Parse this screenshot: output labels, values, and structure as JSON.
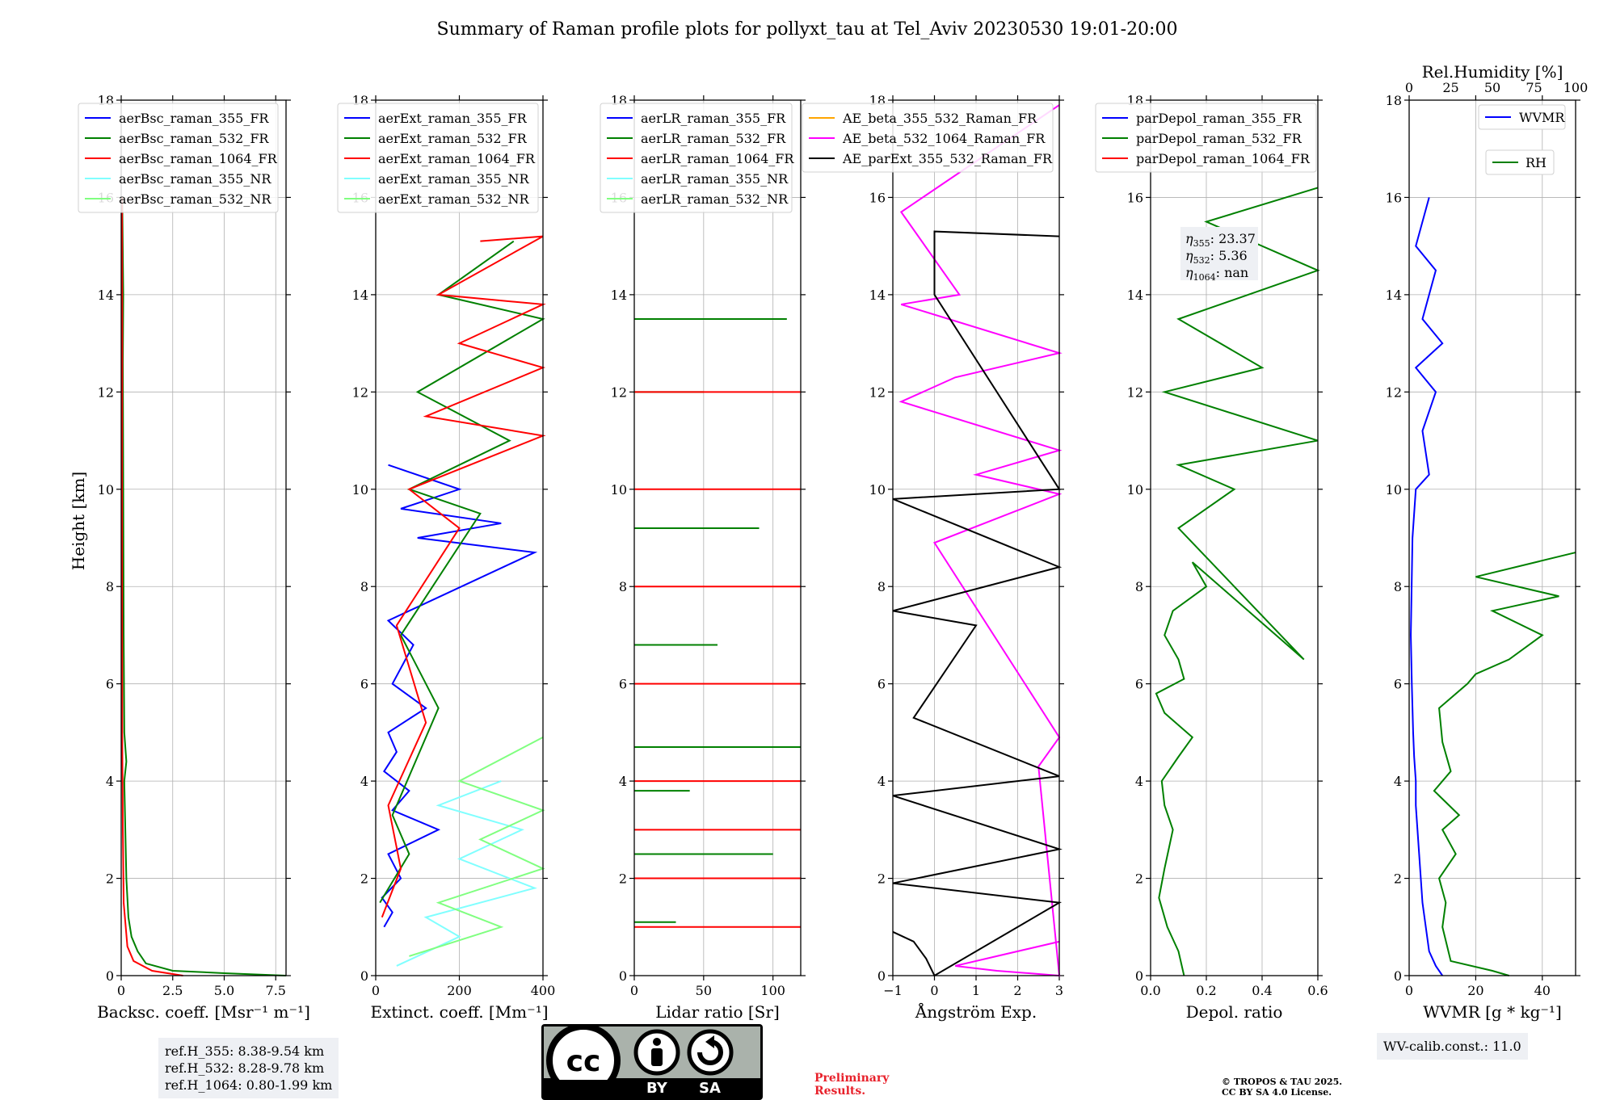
{
  "title": "Summary of Raman profile plots for pollyxt_tau at Tel_Aviv 20230530 19:01-20:00",
  "y_axis_label": "Height [km]",
  "panels": [
    {
      "xlabel": "Backsc. coeff. [Msr$^{-1}$ m$^{-1}$]",
      "xlabel_display": "Backsc. coeff. [Msr⁻¹ m⁻¹]",
      "xticks": [
        "0",
        "2.5",
        "5.0",
        "7.5"
      ],
      "legend": [
        "aerBsc_raman_355_FR",
        "aerBsc_raman_532_FR",
        "aerBsc_raman_1064_FR",
        "aerBsc_raman_355_NR",
        "aerBsc_raman_532_NR"
      ]
    },
    {
      "xlabel_display": "Extinct. coeff. [Mm⁻¹]",
      "xticks": [
        "0",
        "200",
        "400"
      ],
      "legend": [
        "aerExt_raman_355_FR",
        "aerExt_raman_532_FR",
        "aerExt_raman_1064_FR",
        "aerExt_raman_355_NR",
        "aerExt_raman_532_NR"
      ]
    },
    {
      "xlabel_display": "Lidar ratio [Sr]",
      "xticks": [
        "0",
        "50",
        "100"
      ],
      "legend": [
        "aerLR_raman_355_FR",
        "aerLR_raman_532_FR",
        "aerLR_raman_1064_FR",
        "aerLR_raman_355_NR",
        "aerLR_raman_532_NR"
      ]
    },
    {
      "xlabel_display": "Ångström Exp.",
      "xticks": [
        "−1",
        "0",
        "1",
        "2",
        "3"
      ],
      "legend": [
        "AE_beta_355_532_Raman_FR",
        "AE_beta_532_1064_Raman_FR",
        "AE_parExt_355_532_Raman_FR"
      ]
    },
    {
      "xlabel_display": "Depol. ratio",
      "xticks": [
        "0.0",
        "0.2",
        "0.4",
        "0.6"
      ],
      "legend": [
        "parDepol_raman_355_FR",
        "parDepol_raman_532_FR",
        "parDepol_raman_1064_FR"
      ],
      "eta": [
        "23.37",
        "5.36",
        "nan"
      ]
    },
    {
      "xlabel_display": "WVMR [g * kg⁻¹]",
      "top_label": "Rel.Humidity [%]",
      "xticks": [
        "0",
        "20",
        "40"
      ],
      "top_ticks": [
        "0",
        "25",
        "50",
        "75",
        "100"
      ],
      "legend": [
        "WVMR",
        "RH"
      ]
    }
  ],
  "y_ticks": [
    "0",
    "2",
    "4",
    "6",
    "8",
    "10",
    "12",
    "14",
    "16",
    "18"
  ],
  "ref_box": [
    "ref.H_355: 8.38-9.54 km",
    "ref.H_532: 8.28-9.78 km",
    "ref.H_1064: 0.80-1.99 km"
  ],
  "wv_calib": "WV-calib.const.: 11.0",
  "preliminary": [
    "Preliminary",
    "Results."
  ],
  "copyright": [
    "© TROPOS & TAU 2025.",
    "CC BY SA 4.0 License."
  ],
  "license_badge": {
    "main": "cc",
    "left": "BY",
    "right": "SA"
  },
  "colors": {
    "355_FR": "#0000ff",
    "532_FR": "#008000",
    "1064_FR": "#ff0000",
    "355_NR": "#80ffff",
    "532_NR": "#80ff80",
    "AE_355_532": "#ffa500",
    "AE_532_1064": "#ff00ff",
    "AE_par": "#000000"
  },
  "chart_data": [
    {
      "type": "line",
      "panel": 1,
      "xlabel": "Backsc. coeff. [Msr⁻¹ m⁻¹]",
      "ylabel": "Height [km]",
      "xlim": [
        0,
        8
      ],
      "ylim": [
        0,
        18
      ],
      "grid": true,
      "legend_position": "top-left",
      "series": [
        {
          "name": "aerBsc_raman_532_FR",
          "x": [
            8.0,
            5.0,
            2.5,
            1.2,
            0.8,
            0.5,
            0.35,
            0.25,
            0.2,
            0.15,
            0.25,
            0.15,
            0.12,
            0.1,
            0.08,
            0.1,
            0.05
          ],
          "y": [
            0,
            0.05,
            0.1,
            0.25,
            0.5,
            0.8,
            1.2,
            2.0,
            3.0,
            4.0,
            4.4,
            5.0,
            7.0,
            10.0,
            12.6,
            14.0,
            16.0
          ]
        },
        {
          "name": "aerBsc_raman_1064_FR",
          "x": [
            3.0,
            1.5,
            0.6,
            0.3,
            0.12,
            0.08,
            0.05,
            0.04,
            0.05,
            0.04
          ],
          "y": [
            0,
            0.1,
            0.3,
            0.6,
            1.5,
            3.0,
            5.0,
            10.0,
            13.0,
            16.0
          ]
        }
      ]
    },
    {
      "type": "line",
      "panel": 2,
      "xlabel": "Extinct. coeff. [Mm⁻¹]",
      "ylabel": "Height [km]",
      "xlim": [
        0,
        400
      ],
      "ylim": [
        0,
        18
      ],
      "grid": true,
      "legend_position": "top-left",
      "series": [
        {
          "name": "aerExt_raman_355_FR",
          "x": [
            20,
            40,
            15,
            60,
            30,
            150,
            40,
            80,
            20,
            50,
            30,
            120,
            40,
            90,
            30,
            380,
            100,
            300,
            60,
            200,
            30
          ],
          "y": [
            1.0,
            1.3,
            1.6,
            2.0,
            2.5,
            3.0,
            3.4,
            3.8,
            4.2,
            4.6,
            5.0,
            5.5,
            6.0,
            6.8,
            7.3,
            8.7,
            9.0,
            9.3,
            9.6,
            10.0,
            10.5
          ]
        },
        {
          "name": "aerExt_raman_532_FR",
          "x": [
            10,
            80,
            40,
            150,
            60,
            250,
            80,
            320,
            100,
            400,
            150,
            330
          ],
          "y": [
            1.5,
            2.5,
            3.3,
            5.5,
            7.0,
            9.5,
            10.0,
            11.0,
            12.0,
            13.5,
            14.0,
            15.1
          ]
        },
        {
          "name": "aerExt_raman_1064_FR",
          "x": [
            15,
            60,
            30,
            120,
            50,
            200,
            80,
            400,
            120,
            400,
            200,
            400,
            150,
            400,
            250
          ],
          "y": [
            1.2,
            2.2,
            3.5,
            5.2,
            7.2,
            9.2,
            10.0,
            11.1,
            11.5,
            12.5,
            13.0,
            13.8,
            14.0,
            15.2,
            15.1
          ]
        },
        {
          "name": "aerExt_raman_355_NR",
          "x": [
            50,
            200,
            120,
            380,
            200,
            350,
            150,
            300
          ],
          "y": [
            0.2,
            0.8,
            1.2,
            1.8,
            2.4,
            3.0,
            3.5,
            4.0
          ]
        },
        {
          "name": "aerExt_raman_532_NR",
          "x": [
            80,
            300,
            150,
            400,
            250,
            400,
            200,
            400
          ],
          "y": [
            0.4,
            1.0,
            1.5,
            2.2,
            2.8,
            3.4,
            4.0,
            4.9
          ]
        }
      ]
    },
    {
      "type": "line",
      "panel": 3,
      "xlabel": "Lidar ratio [Sr]",
      "ylabel": "Height [km]",
      "xlim": [
        0,
        120
      ],
      "ylim": [
        0,
        18
      ],
      "grid": true,
      "legend_position": "top-left",
      "series": [
        {
          "name": "aerLR_raman_355_FR",
          "x": [],
          "y": []
        },
        {
          "name": "aerLR_raman_532_FR",
          "x": [
            30,
            100,
            40,
            120,
            60,
            90,
            50,
            110
          ],
          "y": [
            1.1,
            2.5,
            3.8,
            4.7,
            6.8,
            9.2,
            12.0,
            13.5
          ]
        },
        {
          "name": "aerLR_raman_1064_FR",
          "x": [
            120,
            120,
            120,
            120,
            120,
            120,
            120,
            120
          ],
          "y": [
            1.0,
            2.0,
            3.0,
            4.0,
            6.0,
            8.0,
            10.0,
            12.0
          ]
        }
      ]
    },
    {
      "type": "line",
      "panel": 4,
      "xlabel": "Ångström Exp.",
      "ylabel": "Height [km]",
      "xlim": [
        -1,
        3
      ],
      "ylim": [
        0,
        18
      ],
      "grid": true,
      "legend_position": "top-left",
      "series": [
        {
          "name": "AE_beta_532_1064_Raman_FR",
          "x": [
            3.0,
            1.5,
            0.5,
            1.5,
            3.0,
            2.5,
            3.0,
            0.0,
            3.0,
            1.0,
            3.0,
            -0.8,
            0.5,
            3.0,
            -0.8,
            0.6,
            -0.8,
            3.0
          ],
          "y": [
            0.7,
            0.4,
            0.2,
            0.1,
            0.0,
            4.3,
            4.9,
            8.9,
            9.9,
            10.3,
            10.8,
            11.8,
            12.3,
            12.8,
            13.8,
            14.0,
            15.7,
            17.9
          ]
        },
        {
          "name": "AE_parExt_355_532_Raman_FR",
          "x": [
            -1.0,
            -0.5,
            -0.2,
            0.0,
            3.0,
            -1.0,
            3.0,
            -1.0,
            3.0,
            -0.5,
            1.0,
            -1.0,
            3.0,
            -1.0,
            3.0,
            0.0,
            0.0,
            3.0
          ],
          "y": [
            0.9,
            0.7,
            0.35,
            0.0,
            1.5,
            1.9,
            2.6,
            3.7,
            4.1,
            5.3,
            7.2,
            7.5,
            8.4,
            9.8,
            10.0,
            14.0,
            15.3,
            15.2
          ]
        }
      ]
    },
    {
      "type": "line",
      "panel": 5,
      "xlabel": "Depol. ratio",
      "ylabel": "Height [km]",
      "xlim": [
        0,
        0.6
      ],
      "ylim": [
        0,
        18
      ],
      "grid": true,
      "legend_position": "top-left",
      "series": [
        {
          "name": "parDepol_raman_532_FR",
          "x": [
            0.12,
            0.1,
            0.06,
            0.03,
            0.05,
            0.08,
            0.05,
            0.04,
            0.1,
            0.15,
            0.05,
            0.02,
            0.12,
            0.1,
            0.05,
            0.08,
            0.2,
            0.15,
            0.55,
            0.1,
            0.3,
            0.1,
            0.6,
            0.05,
            0.4,
            0.1,
            0.6,
            0.2,
            0.6
          ],
          "y": [
            0,
            0.5,
            1.0,
            1.6,
            2.2,
            3.0,
            3.5,
            4.0,
            4.5,
            4.9,
            5.4,
            5.8,
            6.1,
            6.5,
            7.0,
            7.5,
            8.0,
            8.5,
            6.5,
            9.2,
            10.0,
            10.5,
            11.0,
            12.0,
            12.5,
            13.5,
            14.5,
            15.5,
            16.2
          ]
        }
      ]
    },
    {
      "type": "line",
      "panel": 6,
      "xlabel": "WVMR [g * kg⁻¹]",
      "ylabel": "Height [km]",
      "xlim": [
        0,
        50
      ],
      "ylim": [
        0,
        18
      ],
      "grid": true,
      "legend_position": "top-right",
      "top_xlabel": "Rel.Humidity [%]",
      "top_xlim": [
        0,
        100
      ],
      "series": [
        {
          "name": "WVMR",
          "x": [
            10,
            8,
            6,
            5,
            4,
            3.5,
            3,
            2.5,
            2,
            2,
            1.5,
            1.2,
            1.0,
            0.8,
            0.5,
            1,
            2,
            6,
            4,
            8,
            2,
            10,
            4,
            8,
            2,
            6
          ],
          "y": [
            0,
            0.2,
            0.5,
            1.0,
            1.5,
            2.0,
            2.5,
            3.0,
            3.5,
            4.0,
            4.5,
            5.0,
            5.5,
            6.0,
            7.0,
            9.0,
            10.0,
            10.3,
            11.2,
            12.0,
            12.5,
            13.0,
            13.5,
            14.5,
            15.0,
            16.0
          ]
        },
        {
          "name": "RH",
          "x": [
            60,
            50,
            25,
            20,
            22,
            18,
            28,
            20,
            30,
            15,
            25,
            20,
            18,
            35,
            40,
            60,
            80,
            50,
            90,
            40,
            100
          ],
          "y": [
            0,
            0.1,
            0.3,
            1.0,
            1.5,
            2.0,
            2.5,
            3.0,
            3.3,
            3.8,
            4.2,
            4.8,
            5.5,
            6.0,
            6.2,
            6.5,
            7.0,
            7.5,
            7.8,
            8.2,
            8.7
          ]
        }
      ]
    }
  ]
}
